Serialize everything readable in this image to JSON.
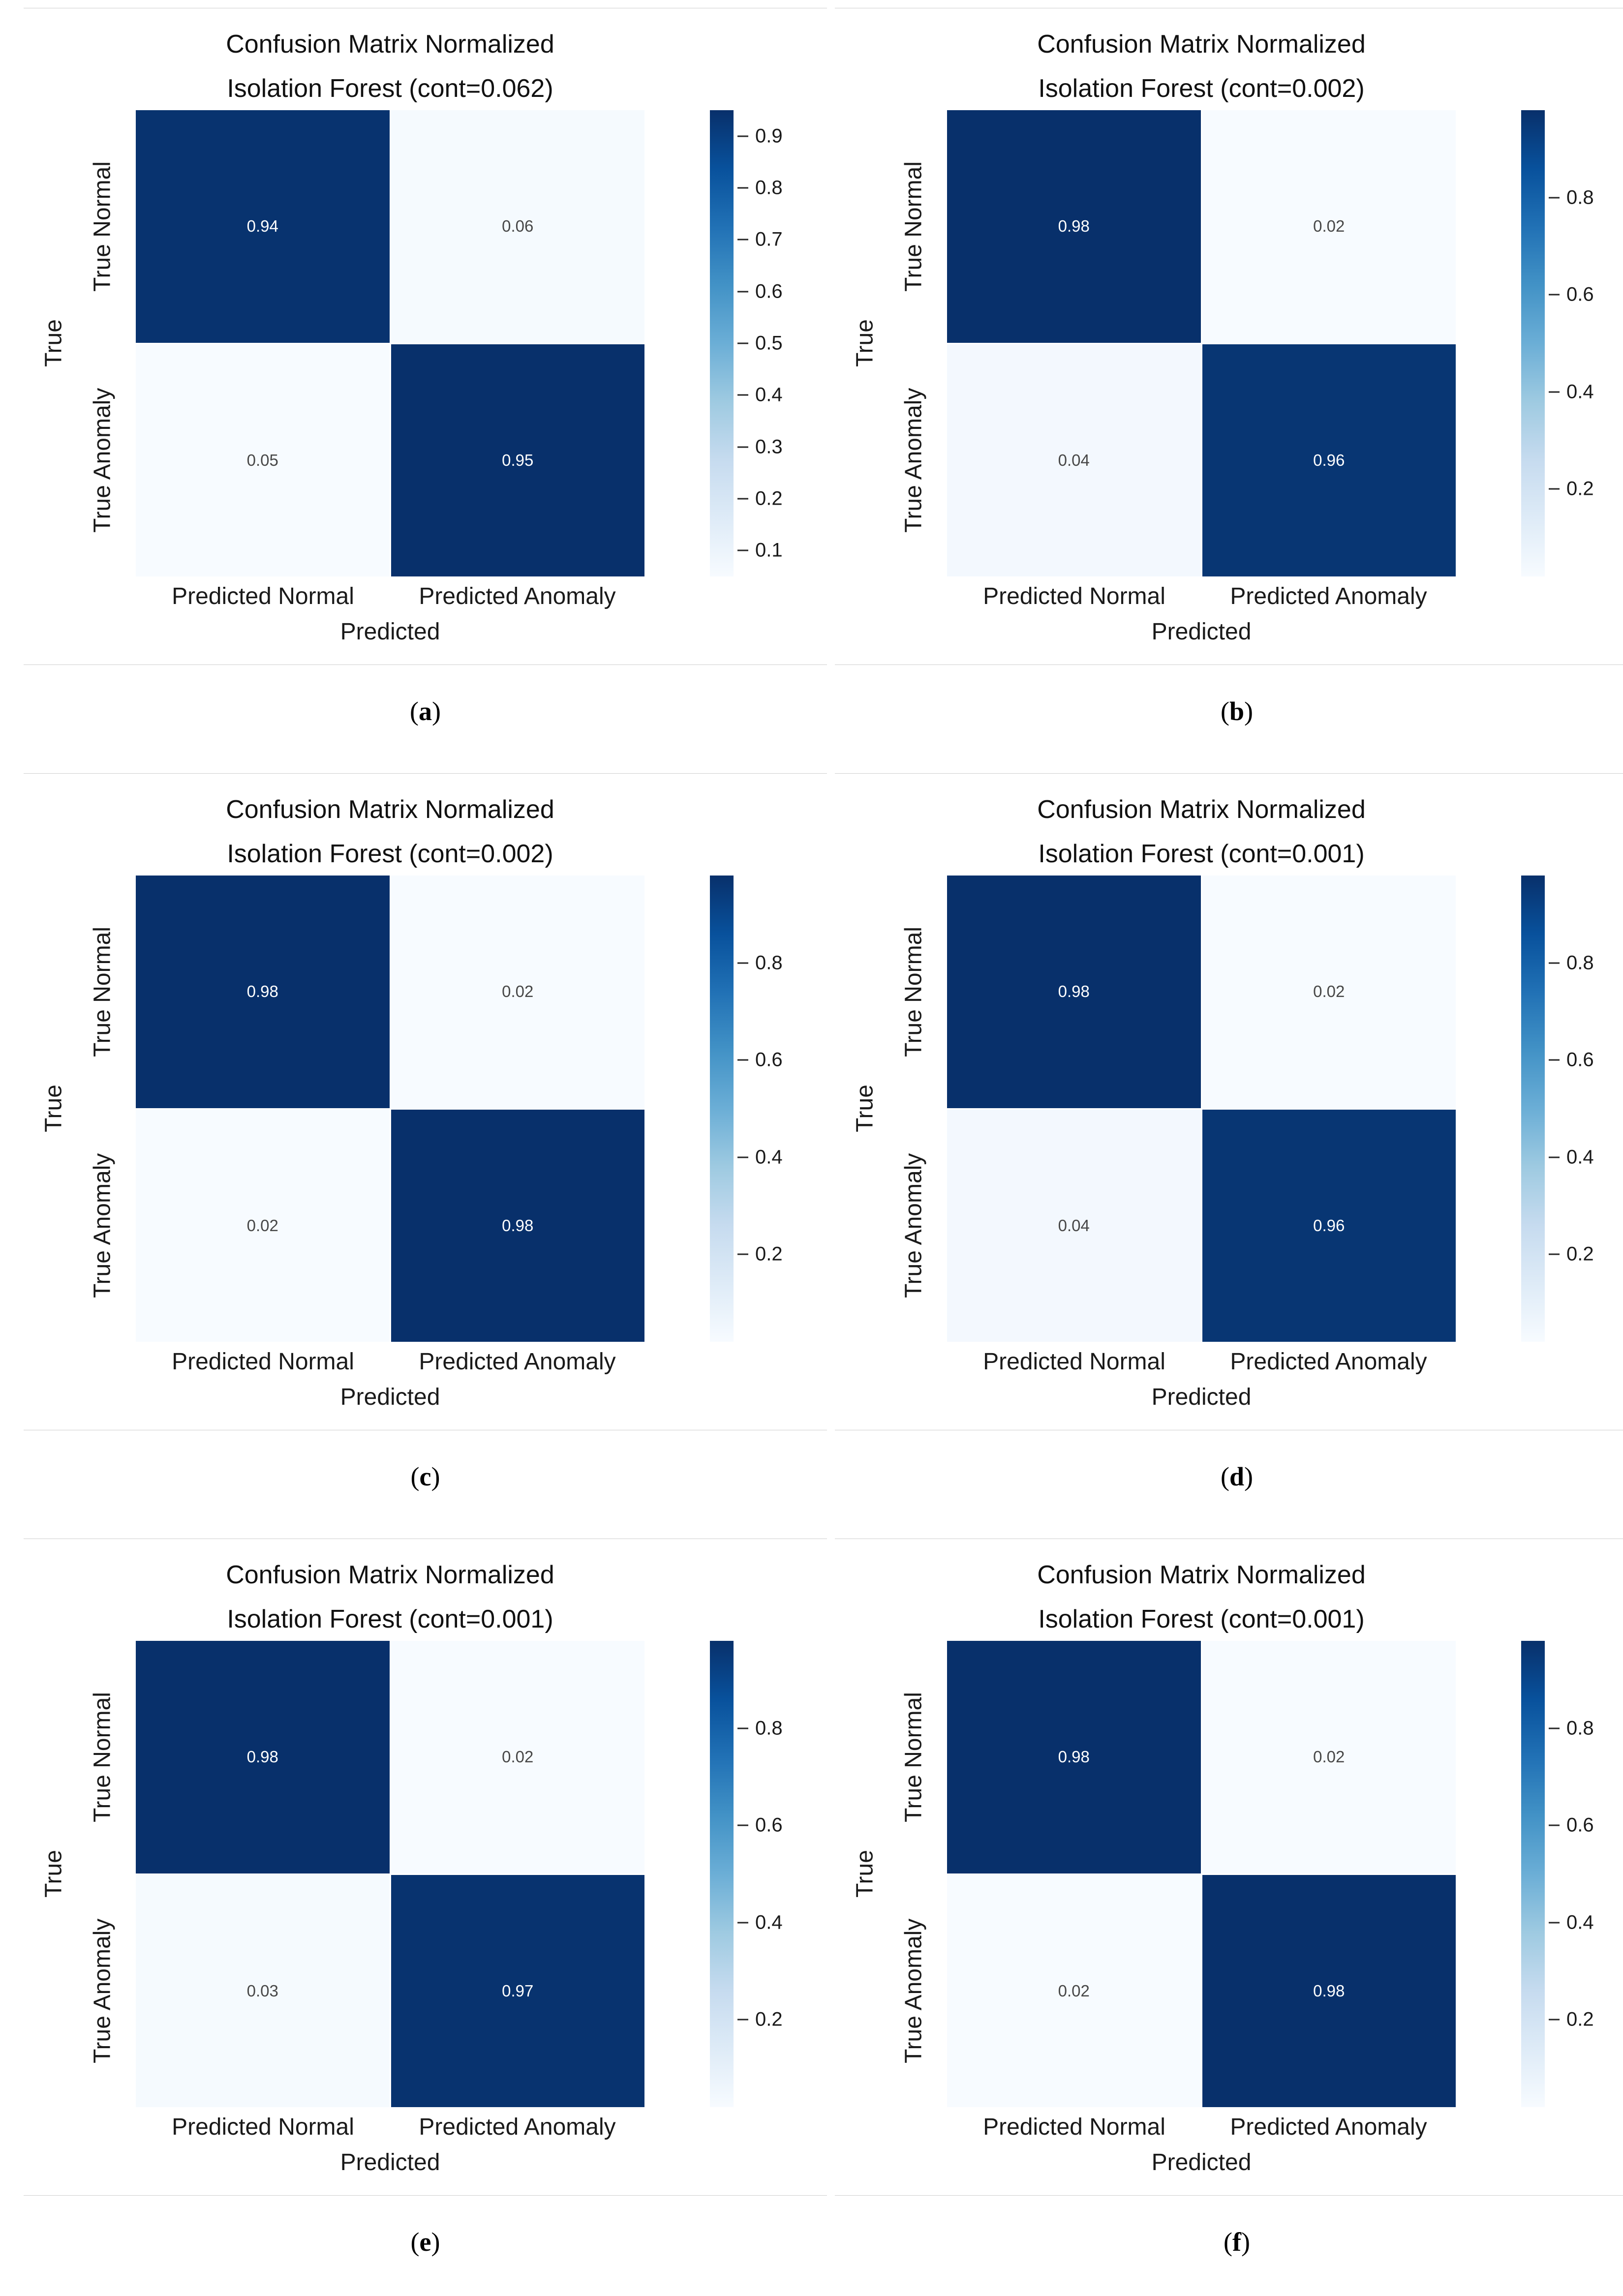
{
  "page": {
    "background": "#ffffff"
  },
  "colors": {
    "colormap_blues": [
      "#f7fbff",
      "#deebf7",
      "#c6dbef",
      "#9ecae1",
      "#6baed6",
      "#4292c6",
      "#2171b5",
      "#08519c",
      "#08306b"
    ],
    "cell_text_on_dark": "#ffffff",
    "cell_text_on_light": "#474747",
    "axis_text": "#1a1a1a",
    "separator_line": "#cfcfcf",
    "tick_mark": "#262626"
  },
  "caption_format": {
    "open": "(",
    "close": ")"
  },
  "chart_data": [
    {
      "type": "heatmap",
      "caption": "a",
      "title_line1": "Confusion Matrix Normalized",
      "title_line2": "Isolation Forest (cont=0.062)",
      "xlabel": "Predicted",
      "ylabel": "True",
      "x_categories": [
        "Predicted Normal",
        "Predicted Anomaly"
      ],
      "y_categories": [
        "True Normal",
        "True Anomaly"
      ],
      "values": [
        [
          0.94,
          0.06
        ],
        [
          0.05,
          0.95
        ]
      ],
      "colorbar": {
        "vmin": 0.05,
        "vmax": 0.95,
        "ticks": [
          0.9,
          0.8,
          0.7,
          0.6,
          0.5,
          0.4,
          0.3,
          0.2,
          0.1
        ]
      }
    },
    {
      "type": "heatmap",
      "caption": "b",
      "title_line1": "Confusion Matrix Normalized",
      "title_line2": "Isolation Forest (cont=0.002)",
      "xlabel": "Predicted",
      "ylabel": "True",
      "x_categories": [
        "Predicted Normal",
        "Predicted Anomaly"
      ],
      "y_categories": [
        "True Normal",
        "True Anomaly"
      ],
      "values": [
        [
          0.98,
          0.02
        ],
        [
          0.04,
          0.96
        ]
      ],
      "colorbar": {
        "vmin": 0.02,
        "vmax": 0.98,
        "ticks": [
          0.8,
          0.6,
          0.4,
          0.2
        ]
      }
    },
    {
      "type": "heatmap",
      "caption": "c",
      "title_line1": "Confusion Matrix Normalized",
      "title_line2": "Isolation Forest (cont=0.002)",
      "xlabel": "Predicted",
      "ylabel": "True",
      "x_categories": [
        "Predicted Normal",
        "Predicted Anomaly"
      ],
      "y_categories": [
        "True Normal",
        "True Anomaly"
      ],
      "values": [
        [
          0.98,
          0.02
        ],
        [
          0.02,
          0.98
        ]
      ],
      "colorbar": {
        "vmin": 0.02,
        "vmax": 0.98,
        "ticks": [
          0.8,
          0.6,
          0.4,
          0.2
        ]
      }
    },
    {
      "type": "heatmap",
      "caption": "d",
      "title_line1": "Confusion Matrix Normalized",
      "title_line2": "Isolation Forest (cont=0.001)",
      "xlabel": "Predicted",
      "ylabel": "True",
      "x_categories": [
        "Predicted Normal",
        "Predicted Anomaly"
      ],
      "y_categories": [
        "True Normal",
        "True Anomaly"
      ],
      "values": [
        [
          0.98,
          0.02
        ],
        [
          0.04,
          0.96
        ]
      ],
      "colorbar": {
        "vmin": 0.02,
        "vmax": 0.98,
        "ticks": [
          0.8,
          0.6,
          0.4,
          0.2
        ]
      }
    },
    {
      "type": "heatmap",
      "caption": "e",
      "title_line1": "Confusion Matrix Normalized",
      "title_line2": "Isolation Forest (cont=0.001)",
      "xlabel": "Predicted",
      "ylabel": "True",
      "x_categories": [
        "Predicted Normal",
        "Predicted Anomaly"
      ],
      "y_categories": [
        "True Normal",
        "True Anomaly"
      ],
      "values": [
        [
          0.98,
          0.02
        ],
        [
          0.03,
          0.97
        ]
      ],
      "colorbar": {
        "vmin": 0.02,
        "vmax": 0.98,
        "ticks": [
          0.8,
          0.6,
          0.4,
          0.2
        ]
      }
    },
    {
      "type": "heatmap",
      "caption": "f",
      "title_line1": "Confusion Matrix Normalized",
      "title_line2": "Isolation Forest (cont=0.001)",
      "xlabel": "Predicted",
      "ylabel": "True",
      "x_categories": [
        "Predicted Normal",
        "Predicted Anomaly"
      ],
      "y_categories": [
        "True Normal",
        "True Anomaly"
      ],
      "values": [
        [
          0.98,
          0.02
        ],
        [
          0.02,
          0.98
        ]
      ],
      "colorbar": {
        "vmin": 0.02,
        "vmax": 0.98,
        "ticks": [
          0.8,
          0.6,
          0.4,
          0.2
        ]
      }
    }
  ]
}
